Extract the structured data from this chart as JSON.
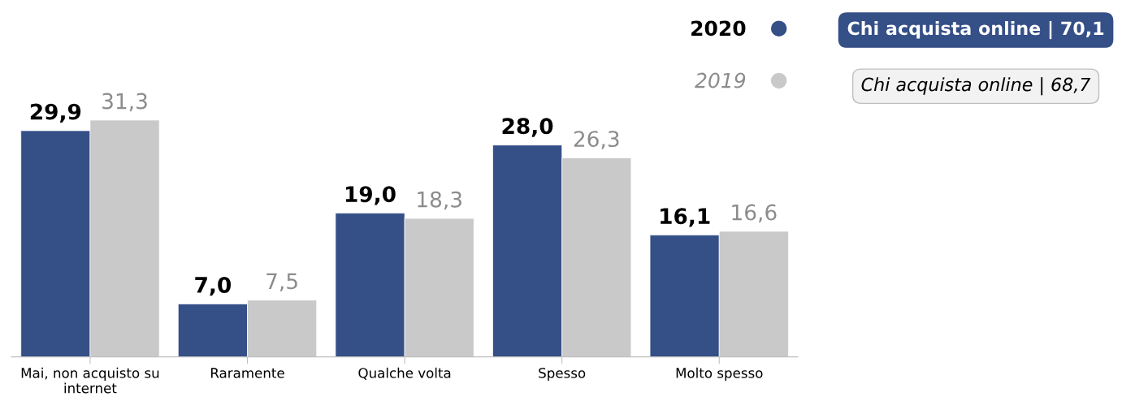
{
  "chart_data": {
    "type": "bar",
    "categories": [
      "Mai, non acquisto su internet",
      "Raramente",
      "Qualche volta",
      "Spesso",
      "Molto spesso"
    ],
    "series": [
      {
        "name": "2020",
        "color": "#354f87",
        "values": [
          29.9,
          7.0,
          19.0,
          28.0,
          16.1
        ],
        "value_labels": [
          "29,9",
          "7,0",
          "19,0",
          "28,0",
          "16,1"
        ]
      },
      {
        "name": "2019",
        "color": "#c9c9c9",
        "values": [
          31.3,
          7.5,
          18.3,
          26.3,
          16.6
        ],
        "value_labels": [
          "31,3",
          "7,5",
          "18,3",
          "26,3",
          "16,6"
        ]
      }
    ],
    "annotations": [
      "Chi acquista online | 70,1",
      "Chi acquista online | 68,7"
    ],
    "legend": "top right",
    "grid": false,
    "tick_labels": "x"
  }
}
